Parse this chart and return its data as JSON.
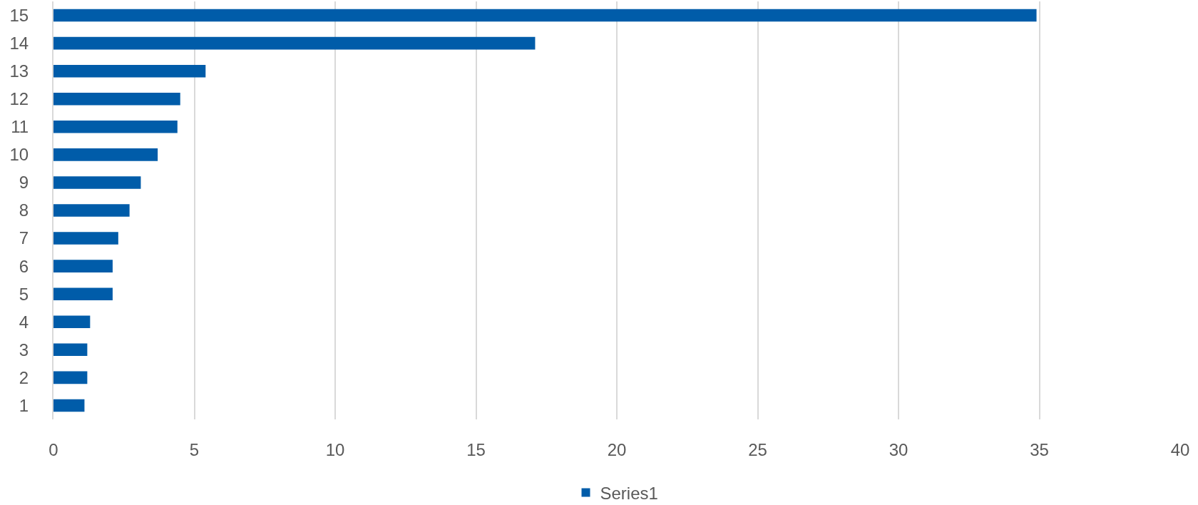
{
  "chart_data": {
    "type": "bar",
    "orientation": "horizontal",
    "categories": [
      "15",
      "14",
      "13",
      "12",
      "11",
      "10",
      "9",
      "8",
      "7",
      "6",
      "5",
      "4",
      "3",
      "2",
      "1"
    ],
    "series": [
      {
        "name": "Series1",
        "color": "#005ca9",
        "values": [
          34.9,
          17.1,
          5.4,
          4.5,
          4.4,
          3.7,
          3.1,
          2.7,
          2.3,
          2.1,
          2.1,
          1.3,
          1.2,
          1.2,
          1.1
        ]
      }
    ],
    "xlim": [
      0,
      40
    ],
    "xticks": [
      0,
      5,
      10,
      15,
      20,
      25,
      30,
      35,
      40
    ],
    "grid": "x",
    "legend": "bottom"
  }
}
